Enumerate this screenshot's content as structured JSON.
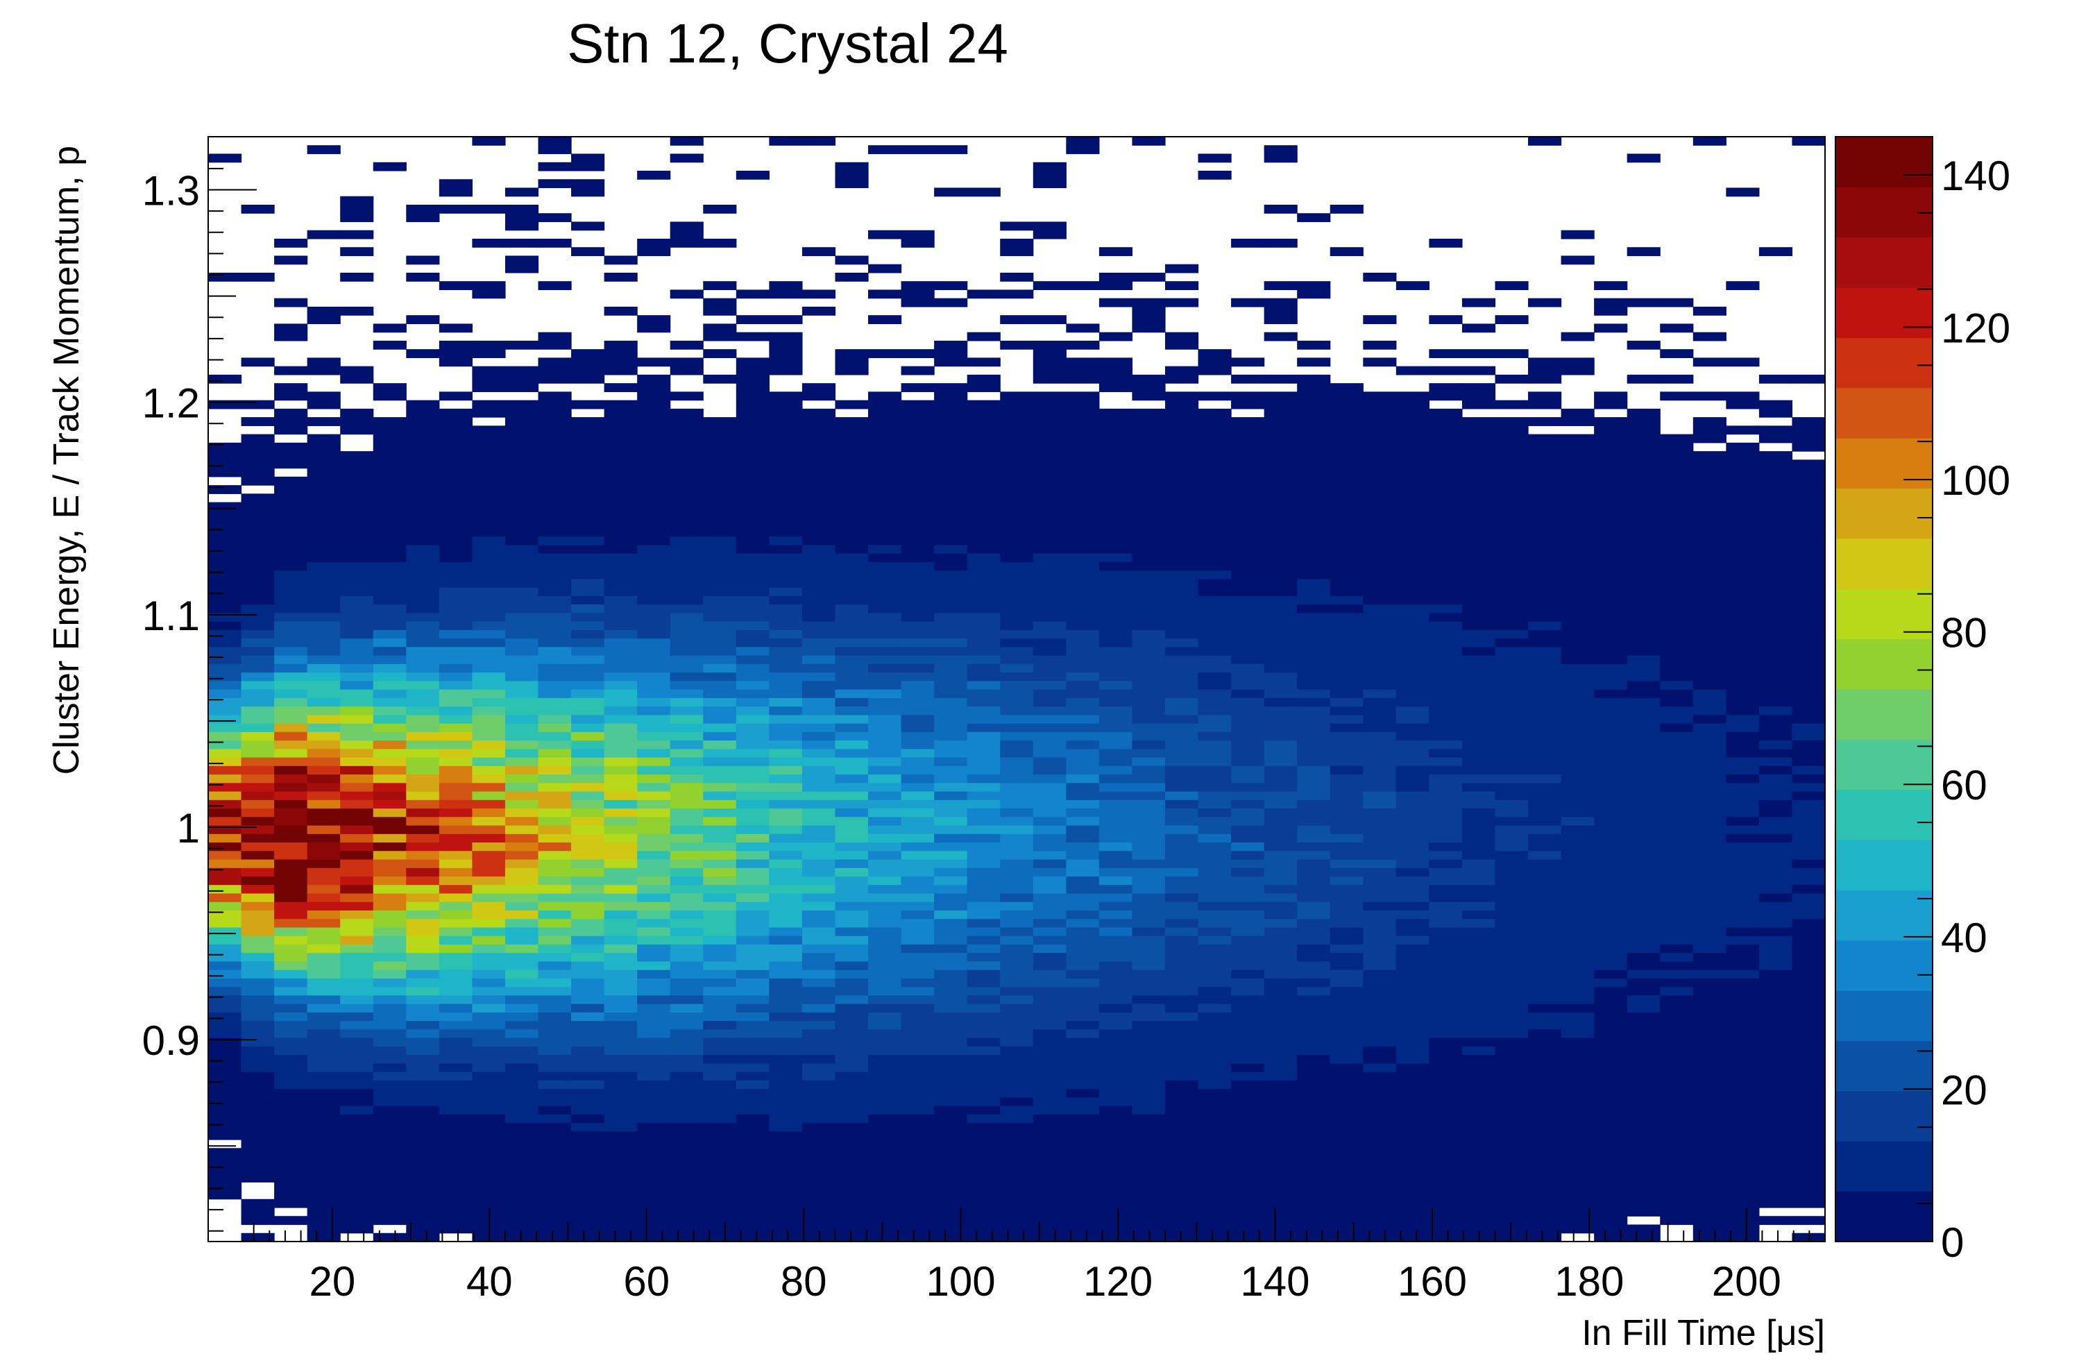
{
  "chart_data": {
    "type": "heatmap",
    "title": "Stn 12, Crystal 24",
    "xlabel": "In Fill Time [μs]",
    "ylabel": "Cluster Energy, E / Track Momentum, p",
    "xlim": [
      4.2,
      210
    ],
    "ylim": [
      0.805,
      1.325
    ],
    "x_ticks": [
      20,
      40,
      60,
      80,
      100,
      120,
      140,
      160,
      180,
      200
    ],
    "y_ticks": [
      0.9,
      1,
      1.1,
      1.2,
      1.3
    ],
    "x_tick_labels": [
      "20",
      "40",
      "60",
      "80",
      "100",
      "120",
      "140",
      "160",
      "180",
      "200"
    ],
    "y_tick_labels": [
      "0.9",
      "1",
      "1.1",
      "1.2",
      "1.3"
    ],
    "z_range": [
      0,
      145
    ],
    "z_ticks": [
      0,
      20,
      40,
      60,
      80,
      100,
      120,
      140
    ],
    "z_tick_labels": [
      "0",
      "20",
      "40",
      "60",
      "80",
      "100",
      "120",
      "140"
    ],
    "color_scale": [
      "#00126e",
      "#002985",
      "#0a3d95",
      "#0b52a6",
      "#0e6cbd",
      "#1285cd",
      "#1a9fcf",
      "#1fb5c9",
      "#2dc1b1",
      "#4ec996",
      "#6fcd6a",
      "#93d22e",
      "#b7d91a",
      "#d0c812",
      "#d4a616",
      "#d87d10",
      "#d25514",
      "#cc3212",
      "#bf1310",
      "#a60d0d",
      "#8c0808",
      "#720404"
    ],
    "bin_width_x": 4.2,
    "bin_height_y": 0.004,
    "distribution": {
      "peak_x": 15,
      "peak_count": 140,
      "mean_y": 0.997,
      "sigma_y_start": 0.035,
      "sigma_y_end": 0.085,
      "decay_time_us": 64
    }
  }
}
